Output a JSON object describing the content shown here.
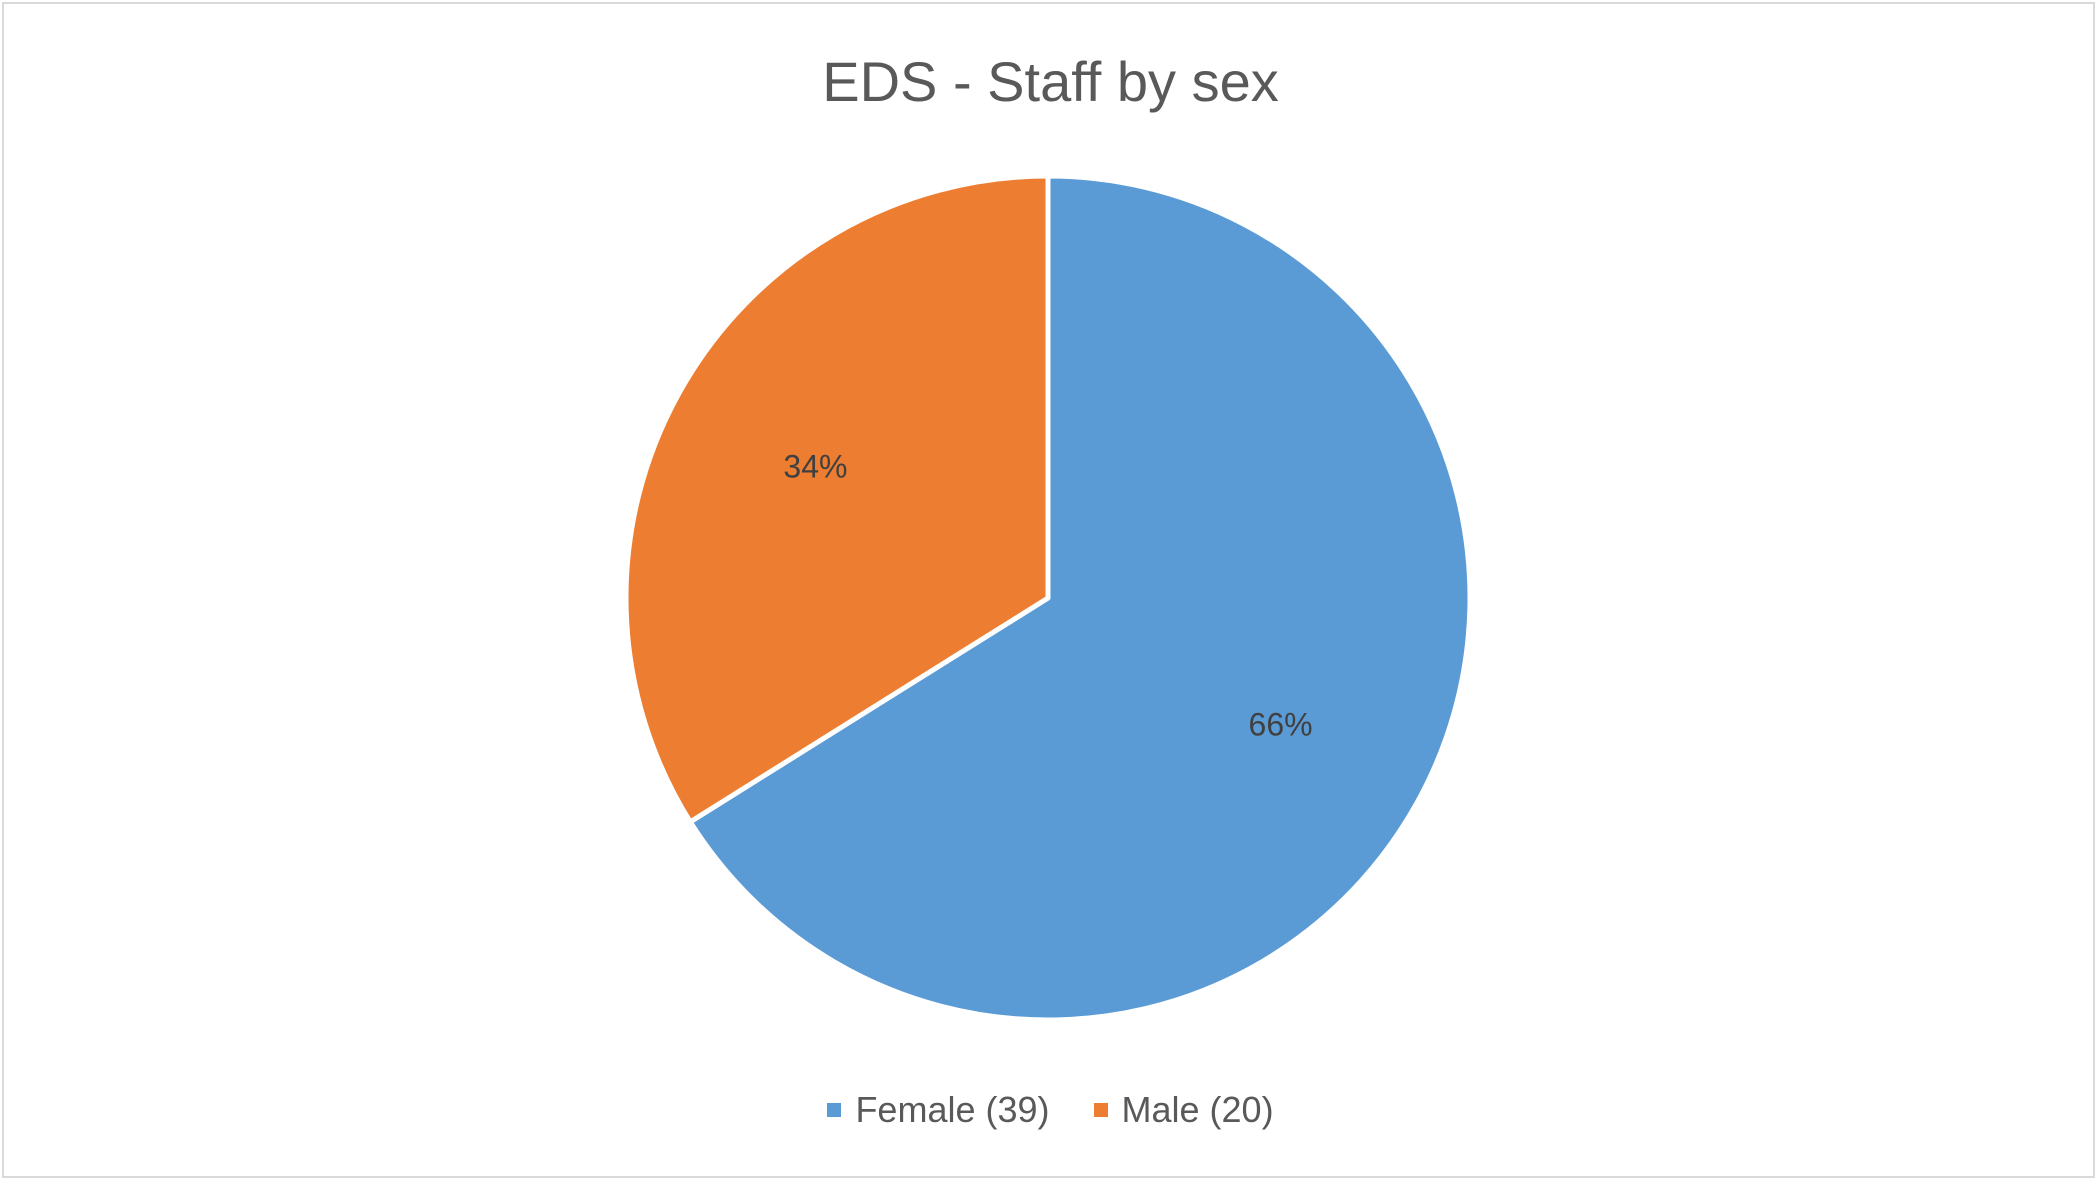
{
  "chart_data": {
    "type": "pie",
    "title": "EDS - Staff by sex",
    "categories": [
      "Female (39)",
      "Male (20)"
    ],
    "values": [
      39,
      20
    ],
    "data_labels": [
      "66%",
      "34%"
    ],
    "colors": [
      "#5b9bd5",
      "#ed7d31"
    ],
    "legend_position": "bottom"
  }
}
